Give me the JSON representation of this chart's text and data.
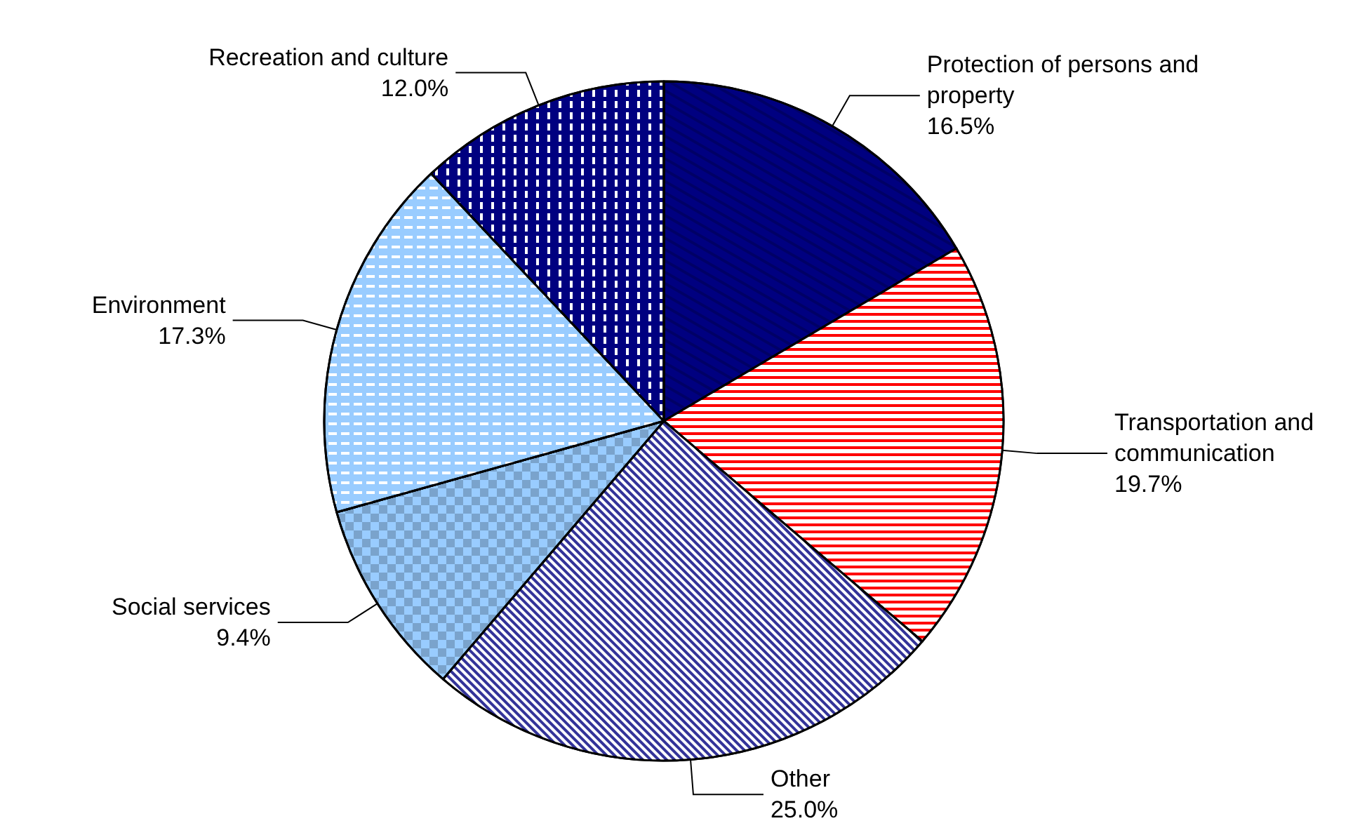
{
  "chart_data": {
    "type": "pie",
    "categories": [
      "Protection of persons and property",
      "Transportation and communication",
      "Other",
      "Social services",
      "Environment",
      "Recreation and culture"
    ],
    "values": [
      16.5,
      19.7,
      25.0,
      9.4,
      17.3,
      12.0
    ],
    "value_labels": [
      "16.5%",
      "19.7%",
      "25.0%",
      "9.4%",
      "17.3%",
      "12.0%"
    ],
    "colors": [
      "#000080",
      "#ff0000",
      "#333399",
      "#99ccff",
      "#99ccff",
      "#000080"
    ],
    "legend": false
  }
}
